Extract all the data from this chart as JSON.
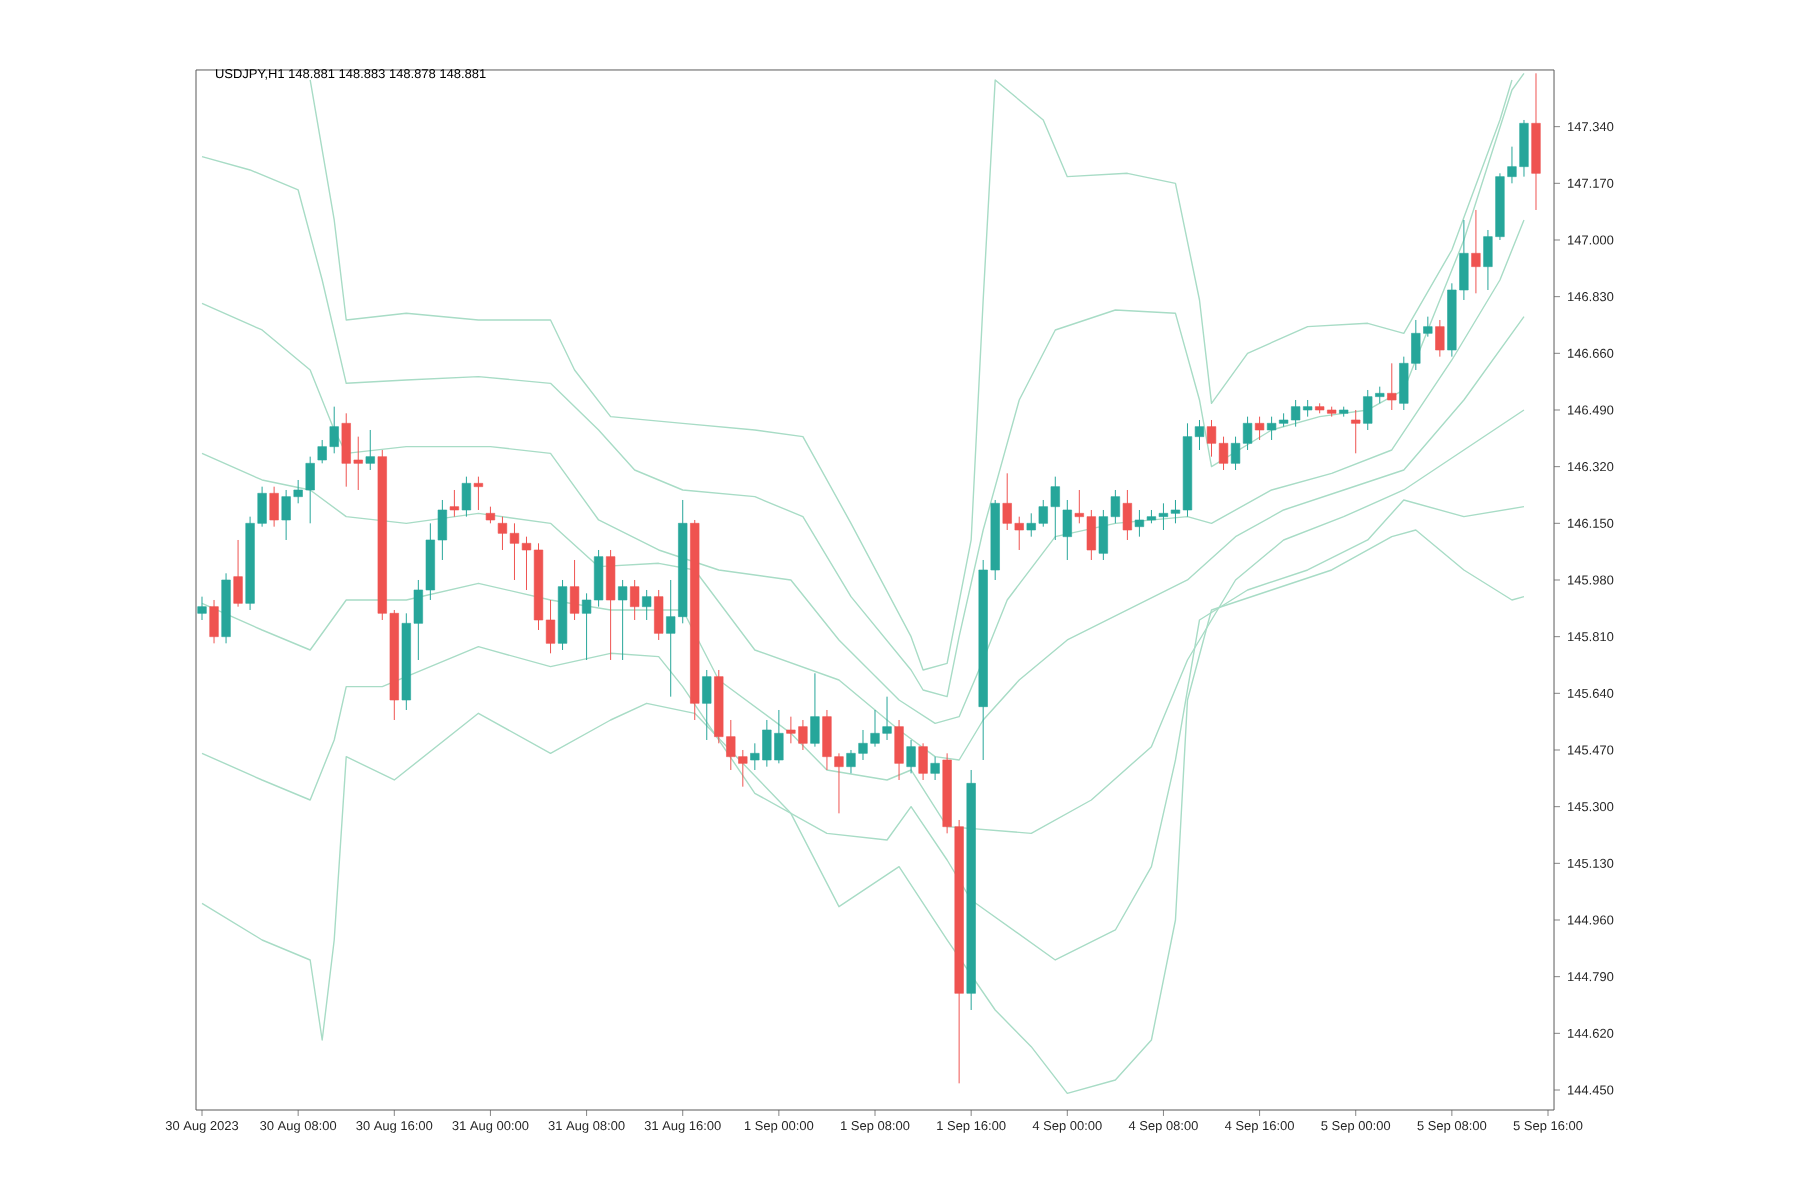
{
  "chart_data": {
    "type": "candlestick",
    "title": "USDJPY,H1  148.881 148.883 148.878 148.881",
    "categories": [
      "30 Aug 2023",
      null,
      null,
      null,
      null,
      null,
      null,
      null,
      "30 Aug 08:00",
      null,
      null,
      null,
      null,
      null,
      null,
      null,
      "30 Aug 16:00",
      null,
      null,
      null,
      null,
      null,
      null,
      null,
      "31 Aug 00:00",
      null,
      null,
      null,
      null,
      null,
      null,
      null,
      "31 Aug 08:00",
      null,
      null,
      null,
      null,
      null,
      null,
      null,
      "31 Aug 16:00",
      null,
      null,
      null,
      null,
      null,
      null,
      null,
      "1 Sep 00:00",
      null,
      null,
      null,
      null,
      null,
      null,
      null,
      "1 Sep 08:00",
      null,
      null,
      null,
      null,
      null,
      null,
      null,
      "1 Sep 16:00",
      null,
      null,
      null,
      null,
      null,
      null,
      null,
      "4 Sep 00:00",
      null,
      null,
      null,
      null,
      null,
      null,
      null,
      "4 Sep 08:00",
      null,
      null,
      null,
      null,
      null,
      null,
      null,
      "4 Sep 16:00",
      null,
      null,
      null,
      null,
      null,
      null,
      null,
      "5 Sep 00:00",
      null,
      null,
      null,
      null,
      null,
      null,
      null,
      "5 Sep 08:00",
      null,
      null,
      null,
      null,
      null,
      null,
      null,
      "5 Sep 16:00"
    ],
    "ohlc": [
      [
        145.88,
        145.93,
        145.86,
        145.9
      ],
      [
        145.9,
        145.92,
        145.79,
        145.81
      ],
      [
        145.81,
        146.0,
        145.79,
        145.98
      ],
      [
        145.99,
        146.1,
        145.9,
        145.91
      ],
      [
        145.91,
        146.17,
        145.89,
        146.15
      ],
      [
        146.15,
        146.26,
        146.14,
        146.24
      ],
      [
        146.24,
        146.26,
        146.14,
        146.16
      ],
      [
        146.16,
        146.25,
        146.1,
        146.23
      ],
      [
        146.23,
        146.28,
        146.21,
        146.25
      ],
      [
        146.25,
        146.35,
        146.15,
        146.33
      ],
      [
        146.34,
        146.4,
        146.33,
        146.38
      ],
      [
        146.38,
        146.5,
        146.36,
        146.44
      ],
      [
        146.45,
        146.48,
        146.26,
        146.33
      ],
      [
        146.34,
        146.41,
        146.25,
        146.33
      ],
      [
        146.33,
        146.43,
        146.31,
        146.35
      ],
      [
        146.35,
        146.37,
        145.86,
        145.88
      ],
      [
        145.88,
        145.89,
        145.56,
        145.62
      ],
      [
        145.62,
        145.88,
        145.59,
        145.85
      ],
      [
        145.85,
        145.98,
        145.74,
        145.95
      ],
      [
        145.95,
        146.15,
        145.92,
        146.1
      ],
      [
        146.1,
        146.22,
        146.04,
        146.19
      ],
      [
        146.2,
        146.25,
        146.17,
        146.19
      ],
      [
        146.19,
        146.29,
        146.17,
        146.27
      ],
      [
        146.27,
        146.29,
        146.19,
        146.26
      ],
      [
        146.18,
        146.2,
        146.15,
        146.16
      ],
      [
        146.15,
        146.17,
        146.07,
        146.12
      ],
      [
        146.12,
        146.15,
        145.98,
        146.09
      ],
      [
        146.09,
        146.11,
        145.95,
        146.07
      ],
      [
        146.07,
        146.09,
        145.83,
        145.86
      ],
      [
        145.86,
        145.92,
        145.76,
        145.79
      ],
      [
        145.79,
        145.98,
        145.77,
        145.96
      ],
      [
        145.96,
        146.04,
        145.86,
        145.88
      ],
      [
        145.88,
        145.94,
        145.74,
        145.92
      ],
      [
        145.92,
        146.07,
        145.9,
        146.05
      ],
      [
        146.05,
        146.07,
        145.74,
        145.92
      ],
      [
        145.92,
        145.98,
        145.74,
        145.96
      ],
      [
        145.96,
        145.98,
        145.86,
        145.9
      ],
      [
        145.9,
        145.95,
        145.86,
        145.93
      ],
      [
        145.93,
        145.95,
        145.8,
        145.82
      ],
      [
        145.82,
        145.98,
        145.63,
        145.87
      ],
      [
        145.87,
        146.22,
        145.85,
        146.15
      ],
      [
        146.15,
        146.16,
        145.56,
        145.61
      ],
      [
        145.61,
        145.71,
        145.5,
        145.69
      ],
      [
        145.69,
        145.71,
        145.49,
        145.51
      ],
      [
        145.51,
        145.56,
        145.41,
        145.45
      ],
      [
        145.45,
        145.47,
        145.36,
        145.43
      ],
      [
        145.44,
        145.49,
        145.41,
        145.46
      ],
      [
        145.44,
        145.56,
        145.42,
        145.53
      ],
      [
        145.44,
        145.59,
        145.43,
        145.52
      ],
      [
        145.53,
        145.57,
        145.49,
        145.52
      ],
      [
        145.54,
        145.56,
        145.47,
        145.49
      ],
      [
        145.49,
        145.7,
        145.48,
        145.57
      ],
      [
        145.57,
        145.59,
        145.41,
        145.45
      ],
      [
        145.45,
        145.46,
        145.28,
        145.42
      ],
      [
        145.42,
        145.47,
        145.4,
        145.46
      ],
      [
        145.46,
        145.53,
        145.44,
        145.49
      ],
      [
        145.49,
        145.59,
        145.48,
        145.52
      ],
      [
        145.52,
        145.63,
        145.5,
        145.54
      ],
      [
        145.54,
        145.56,
        145.38,
        145.43
      ],
      [
        145.42,
        145.5,
        145.4,
        145.48
      ],
      [
        145.48,
        145.49,
        145.38,
        145.4
      ],
      [
        145.4,
        145.45,
        145.38,
        145.43
      ],
      [
        145.44,
        145.46,
        145.22,
        145.24
      ],
      [
        145.24,
        145.26,
        144.47,
        144.74
      ],
      [
        144.74,
        145.41,
        144.69,
        145.37
      ],
      [
        145.6,
        146.04,
        145.44,
        146.01
      ],
      [
        146.01,
        146.22,
        145.98,
        146.21
      ],
      [
        146.21,
        146.3,
        146.13,
        146.15
      ],
      [
        146.15,
        146.17,
        146.07,
        146.13
      ],
      [
        146.13,
        146.18,
        146.11,
        146.15
      ],
      [
        146.15,
        146.22,
        146.14,
        146.2
      ],
      [
        146.2,
        146.29,
        146.1,
        146.26
      ],
      [
        146.11,
        146.22,
        146.04,
        146.19
      ],
      [
        146.18,
        146.25,
        146.15,
        146.17
      ],
      [
        146.17,
        146.19,
        146.04,
        146.07
      ],
      [
        146.06,
        146.19,
        146.04,
        146.17
      ],
      [
        146.17,
        146.25,
        146.15,
        146.23
      ],
      [
        146.21,
        146.25,
        146.1,
        146.13
      ],
      [
        146.14,
        146.19,
        146.11,
        146.16
      ],
      [
        146.16,
        146.19,
        146.15,
        146.17
      ],
      [
        146.17,
        146.21,
        146.13,
        146.18
      ],
      [
        146.18,
        146.22,
        146.15,
        146.19
      ],
      [
        146.19,
        146.45,
        146.17,
        146.41
      ],
      [
        146.41,
        146.46,
        146.37,
        146.44
      ],
      [
        146.44,
        146.46,
        146.35,
        146.39
      ],
      [
        146.39,
        146.41,
        146.31,
        146.33
      ],
      [
        146.33,
        146.41,
        146.31,
        146.39
      ],
      [
        146.39,
        146.47,
        146.37,
        146.45
      ],
      [
        146.45,
        146.47,
        146.4,
        146.43
      ],
      [
        146.43,
        146.47,
        146.4,
        146.45
      ],
      [
        146.45,
        146.48,
        146.44,
        146.46
      ],
      [
        146.46,
        146.52,
        146.44,
        146.5
      ],
      [
        146.49,
        146.52,
        146.47,
        146.5
      ],
      [
        146.5,
        146.51,
        146.48,
        146.49
      ],
      [
        146.49,
        146.5,
        146.47,
        146.48
      ],
      [
        146.48,
        146.5,
        146.47,
        146.49
      ],
      [
        146.46,
        146.49,
        146.36,
        146.45
      ],
      [
        146.45,
        146.55,
        146.43,
        146.53
      ],
      [
        146.53,
        146.56,
        146.51,
        146.54
      ],
      [
        146.54,
        146.63,
        146.49,
        146.52
      ],
      [
        146.51,
        146.65,
        146.49,
        146.63
      ],
      [
        146.63,
        146.76,
        146.61,
        146.72
      ],
      [
        146.72,
        146.77,
        146.71,
        146.74
      ],
      [
        146.74,
        146.76,
        146.65,
        146.67
      ],
      [
        146.67,
        146.87,
        146.65,
        146.85
      ],
      [
        146.85,
        147.06,
        146.82,
        146.96
      ],
      [
        146.96,
        147.09,
        146.84,
        146.92
      ],
      [
        146.92,
        147.03,
        146.85,
        147.01
      ],
      [
        147.01,
        147.2,
        147.0,
        147.19
      ],
      [
        147.19,
        147.28,
        147.17,
        147.22
      ],
      [
        147.22,
        147.36,
        147.19,
        147.35
      ],
      [
        147.35,
        147.5,
        147.09,
        147.2
      ],
      null
    ],
    "series": [
      {
        "type": "line",
        "color": "#a8dcc6",
        "values": [
          null,
          null,
          null,
          null,
          null,
          null,
          null,
          null,
          null,
          147.48,
          null,
          147.06,
          146.76,
          null,
          null,
          null,
          null,
          146.78,
          null,
          null,
          null,
          null,
          null,
          146.76,
          null,
          null,
          null,
          null,
          null,
          146.76,
          null,
          146.61,
          null,
          null,
          146.47,
          null,
          null,
          null,
          null,
          null,
          146.45,
          null,
          null,
          null,
          null,
          null,
          146.43,
          null,
          null,
          null,
          146.41,
          null,
          null,
          null,
          146.15,
          null,
          null,
          null,
          null,
          145.81,
          145.71,
          null,
          145.73,
          null,
          146.1,
          146.82,
          147.48,
          null,
          null,
          null,
          147.36,
          null,
          147.19,
          null,
          null,
          null,
          null,
          147.2,
          null,
          null,
          null,
          147.17,
          null,
          146.82,
          146.51,
          null,
          null,
          146.66,
          null,
          null,
          null,
          null,
          146.74,
          null,
          null,
          null,
          null,
          146.75,
          null,
          null,
          146.72,
          null,
          null,
          null,
          146.97,
          null,
          null,
          null,
          147.36,
          147.48,
          null,
          null,
          null
        ]
      },
      {
        "type": "line",
        "color": "#a8dcc6",
        "values": [
          147.25,
          null,
          null,
          null,
          147.21,
          null,
          null,
          null,
          147.15,
          null,
          146.88,
          null,
          146.57,
          null,
          null,
          null,
          null,
          146.58,
          null,
          null,
          null,
          null,
          null,
          146.59,
          null,
          null,
          null,
          null,
          null,
          146.57,
          null,
          null,
          null,
          146.43,
          null,
          null,
          146.31,
          null,
          null,
          null,
          146.25,
          null,
          null,
          null,
          null,
          null,
          146.23,
          null,
          null,
          null,
          146.17,
          null,
          null,
          null,
          145.93,
          null,
          null,
          null,
          null,
          145.71,
          145.65,
          null,
          145.63,
          145.81,
          null,
          146.13,
          null,
          null,
          146.52,
          null,
          null,
          146.73,
          null,
          null,
          null,
          null,
          146.79,
          null,
          null,
          null,
          null,
          146.78,
          null,
          146.52,
          146.32,
          null,
          null,
          null,
          null,
          146.43,
          null,
          null,
          null,
          146.47,
          null,
          null,
          null,
          146.49,
          null,
          null,
          146.55,
          null,
          null,
          null,
          null,
          147.0,
          null,
          null,
          null,
          147.45,
          147.5,
          null,
          null
        ]
      },
      {
        "type": "line",
        "color": "#a8dcc6",
        "values": [
          146.81,
          null,
          null,
          null,
          null,
          146.73,
          null,
          null,
          null,
          146.61,
          null,
          146.43,
          146.36,
          null,
          null,
          null,
          null,
          146.38,
          null,
          null,
          null,
          null,
          null,
          null,
          146.38,
          null,
          null,
          null,
          null,
          146.36,
          null,
          null,
          null,
          146.16,
          null,
          null,
          null,
          null,
          146.07,
          null,
          null,
          null,
          null,
          146.01,
          null,
          null,
          null,
          null,
          null,
          145.98,
          null,
          null,
          null,
          145.8,
          null,
          null,
          null,
          null,
          145.62,
          null,
          null,
          145.55,
          null,
          145.57,
          null,
          145.74,
          null,
          145.92,
          null,
          null,
          null,
          146.11,
          null,
          null,
          null,
          null,
          146.15,
          null,
          null,
          null,
          null,
          null,
          146.17,
          null,
          146.15,
          null,
          null,
          null,
          null,
          146.25,
          null,
          null,
          null,
          null,
          146.3,
          null,
          null,
          null,
          null,
          146.37,
          null,
          null,
          null,
          null,
          146.64,
          null,
          null,
          null,
          146.88,
          null,
          147.06,
          null,
          null
        ]
      },
      {
        "type": "line",
        "color": "#a8dcc6",
        "values": [
          146.36,
          null,
          null,
          null,
          null,
          146.28,
          null,
          null,
          null,
          146.25,
          null,
          null,
          146.17,
          null,
          null,
          null,
          null,
          146.15,
          null,
          null,
          null,
          null,
          null,
          146.18,
          null,
          null,
          null,
          null,
          null,
          146.15,
          null,
          null,
          null,
          146.02,
          null,
          null,
          null,
          null,
          146.03,
          null,
          null,
          146.01,
          null,
          null,
          null,
          null,
          145.77,
          null,
          null,
          null,
          null,
          null,
          null,
          145.68,
          null,
          null,
          null,
          null,
          145.53,
          null,
          null,
          145.45,
          null,
          145.44,
          null,
          145.56,
          null,
          null,
          145.68,
          null,
          null,
          null,
          145.8,
          null,
          null,
          null,
          null,
          145.89,
          null,
          null,
          null,
          null,
          145.98,
          null,
          null,
          null,
          146.11,
          null,
          null,
          null,
          146.19,
          null,
          null,
          null,
          null,
          146.25,
          null,
          null,
          null,
          null,
          146.31,
          null,
          null,
          null,
          null,
          146.52,
          null,
          null,
          null,
          null,
          146.77,
          null,
          null
        ]
      },
      {
        "type": "line",
        "color": "#a8dcc6",
        "values": [
          145.91,
          null,
          null,
          null,
          null,
          145.83,
          null,
          null,
          null,
          145.77,
          null,
          null,
          145.92,
          null,
          null,
          null,
          null,
          145.92,
          null,
          null,
          null,
          null,
          null,
          145.97,
          null,
          null,
          null,
          null,
          null,
          145.92,
          null,
          null,
          null,
          null,
          145.89,
          null,
          null,
          null,
          null,
          null,
          145.89,
          null,
          null,
          145.68,
          null,
          null,
          null,
          null,
          null,
          145.52,
          null,
          null,
          145.41,
          null,
          null,
          null,
          null,
          145.38,
          null,
          145.41,
          null,
          null,
          145.24,
          null,
          null,
          null,
          null,
          null,
          null,
          145.22,
          null,
          null,
          null,
          null,
          145.32,
          null,
          null,
          null,
          null,
          145.48,
          null,
          null,
          145.74,
          null,
          null,
          null,
          145.98,
          null,
          null,
          null,
          146.1,
          null,
          null,
          null,
          null,
          146.17,
          null,
          null,
          null,
          null,
          146.25,
          null,
          null,
          null,
          null,
          146.37,
          null,
          null,
          null,
          null,
          146.49,
          null,
          null
        ]
      },
      {
        "type": "line",
        "color": "#a8dcc6",
        "values": [
          145.46,
          null,
          null,
          null,
          null,
          145.38,
          null,
          null,
          null,
          145.32,
          null,
          145.5,
          145.66,
          null,
          null,
          145.66,
          null,
          null,
          null,
          null,
          null,
          null,
          null,
          145.78,
          null,
          null,
          null,
          null,
          null,
          145.72,
          null,
          null,
          null,
          null,
          145.76,
          null,
          null,
          null,
          145.75,
          null,
          145.66,
          null,
          null,
          null,
          null,
          null,
          145.34,
          null,
          null,
          null,
          null,
          null,
          145.22,
          null,
          null,
          null,
          null,
          145.2,
          null,
          145.3,
          null,
          null,
          145.14,
          null,
          145.02,
          null,
          null,
          null,
          null,
          null,
          null,
          144.84,
          null,
          null,
          null,
          null,
          144.93,
          null,
          null,
          145.12,
          null,
          145.44,
          null,
          145.86,
          null,
          null,
          null,
          145.95,
          null,
          null,
          null,
          null,
          146.01,
          null,
          null,
          null,
          null,
          146.1,
          null,
          null,
          146.22,
          null,
          null,
          null,
          null,
          146.17,
          null,
          null,
          null,
          null,
          146.2,
          null,
          null
        ]
      },
      {
        "type": "line",
        "color": "#a8dcc6",
        "values": [
          145.01,
          null,
          null,
          null,
          null,
          144.9,
          null,
          null,
          null,
          144.84,
          144.6,
          144.9,
          145.45,
          null,
          null,
          null,
          145.38,
          null,
          null,
          null,
          null,
          null,
          null,
          145.58,
          null,
          null,
          null,
          null,
          null,
          145.46,
          null,
          null,
          null,
          null,
          145.56,
          null,
          null,
          145.61,
          null,
          null,
          null,
          145.58,
          null,
          null,
          null,
          null,
          null,
          null,
          null,
          145.28,
          null,
          null,
          null,
          145.0,
          null,
          null,
          null,
          null,
          145.12,
          null,
          null,
          null,
          144.9,
          null,
          null,
          null,
          144.69,
          null,
          null,
          144.58,
          null,
          null,
          144.44,
          null,
          null,
          null,
          144.48,
          null,
          null,
          144.6,
          null,
          144.96,
          145.62,
          null,
          145.89,
          null,
          null,
          null,
          null,
          145.95,
          null,
          null,
          null,
          null,
          146.01,
          null,
          null,
          null,
          null,
          146.11,
          null,
          146.13,
          null,
          null,
          null,
          146.01,
          null,
          null,
          null,
          145.92,
          145.93,
          null,
          null
        ]
      }
    ],
    "ylim": [
      144.39,
      147.51
    ],
    "yticks": [
      {
        "value": 144.45,
        "label": "144.450"
      },
      {
        "value": 144.62,
        "label": "144.620"
      },
      {
        "value": 144.79,
        "label": "144.790"
      },
      {
        "value": 144.96,
        "label": "144.960"
      },
      {
        "value": 145.13,
        "label": "145.130"
      },
      {
        "value": 145.3,
        "label": "145.300"
      },
      {
        "value": 145.47,
        "label": "145.470"
      },
      {
        "value": 145.64,
        "label": "145.640"
      },
      {
        "value": 145.81,
        "label": "145.810"
      },
      {
        "value": 145.98,
        "label": "145.980"
      },
      {
        "value": 146.15,
        "label": "146.150"
      },
      {
        "value": 146.32,
        "label": "146.320"
      },
      {
        "value": 146.49,
        "label": "146.490"
      },
      {
        "value": 146.66,
        "label": "146.660"
      },
      {
        "value": 146.83,
        "label": "146.830"
      },
      {
        "value": 147.0,
        "label": "147.000"
      },
      {
        "value": 147.17,
        "label": "147.170"
      },
      {
        "value": 147.34,
        "label": "147.340"
      }
    ]
  }
}
